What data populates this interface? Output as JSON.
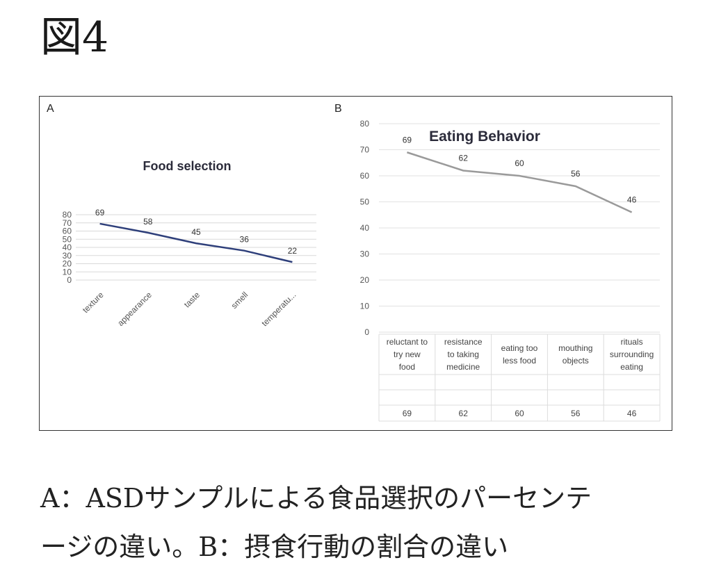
{
  "figure_title": "図4",
  "captions": [
    "A：ASDサンプルによる食品選択のパーセンテ",
    "ージの違い。B：摂食行動の割合の違い"
  ],
  "chart_data": [
    {
      "panel": "A",
      "type": "line",
      "title": "Food selection",
      "categories": [
        "texture",
        "appearance",
        "taste",
        "smell",
        "temperatu..."
      ],
      "values": [
        69,
        58,
        45,
        36,
        22
      ],
      "ylim": [
        0,
        80
      ],
      "yticks": [
        0,
        10,
        20,
        30,
        40,
        50,
        60,
        70,
        80
      ],
      "grid": true,
      "line_color": "#2e3f7a"
    },
    {
      "panel": "B",
      "type": "line",
      "title": "Eating Behavior",
      "categories": [
        [
          "reluctant to",
          "try new",
          "food"
        ],
        [
          "resistance",
          "to taking",
          "medicine"
        ],
        [
          "eating too",
          "less food"
        ],
        [
          "mouthing",
          "objects"
        ],
        [
          "rituals",
          "surrounding",
          "eating"
        ]
      ],
      "values": [
        69,
        62,
        60,
        56,
        46
      ],
      "ylim": [
        0,
        80
      ],
      "yticks": [
        0,
        10,
        20,
        30,
        40,
        50,
        60,
        70,
        80
      ],
      "grid": true,
      "data_table": true,
      "line_color": "#9a9a9a"
    }
  ]
}
